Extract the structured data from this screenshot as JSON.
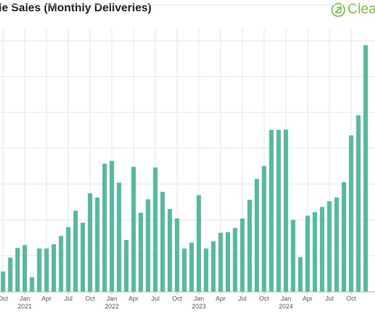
{
  "header": {
    "title": "le Sales (Monthly Deliveries)",
    "brand": "Clear"
  },
  "colors": {
    "bar": "#54b99e",
    "grid": "#e6e6e6",
    "axis": "#bbbbbb",
    "brand": "#7cc242"
  },
  "chart_data": {
    "type": "bar",
    "title": "le Sales (Monthly Deliveries)",
    "xlabel": "",
    "ylabel": "",
    "ylim": [
      0,
      100
    ],
    "grid": true,
    "legend": "none",
    "categories": [
      "2020-09",
      "2020-10",
      "2020-11",
      "2020-12",
      "2021-01",
      "2021-02",
      "2021-03",
      "2021-04",
      "2021-05",
      "2021-06",
      "2021-07",
      "2021-08",
      "2021-09",
      "2021-10",
      "2021-11",
      "2021-12",
      "2022-01",
      "2022-02",
      "2022-03",
      "2022-04",
      "2022-05",
      "2022-06",
      "2022-07",
      "2022-08",
      "2022-09",
      "2022-10",
      "2022-11",
      "2022-12",
      "2023-01",
      "2023-02",
      "2023-03",
      "2023-04",
      "2023-05",
      "2023-06",
      "2023-07",
      "2023-08",
      "2023-09",
      "2023-10",
      "2023-11",
      "2023-12",
      "2024-01",
      "2024-02",
      "2024-03",
      "2024-04",
      "2024-05",
      "2024-06",
      "2024-07",
      "2024-08",
      "2024-09",
      "2024-10",
      "2024-11",
      "2024-12"
    ],
    "values": [
      9.2,
      7.0,
      11.8,
      15.2,
      16.2,
      5.0,
      15.0,
      15.0,
      16.5,
      19.4,
      22.5,
      28.2,
      24.0,
      34.3,
      32.8,
      44.6,
      45.6,
      38.0,
      18.0,
      43.5,
      27.5,
      32.2,
      43.3,
      34.8,
      28.8,
      25.5,
      15.0,
      17.0,
      33.6,
      15.0,
      17.5,
      20.5,
      20.7,
      22.2,
      25.5,
      32.0,
      39.3,
      43.8,
      56.4,
      56.4,
      56.5,
      25.0,
      12.0,
      26.5,
      27.7,
      29.5,
      31.5,
      32.8,
      38.2,
      54.5,
      61.5,
      86.0
    ],
    "x_ticks": [
      {
        "label": "Oct",
        "index": 1
      },
      {
        "label": "Jan",
        "index": 4
      },
      {
        "label": "Apr",
        "index": 7
      },
      {
        "label": "Jul",
        "index": 10
      },
      {
        "label": "Oct",
        "index": 13
      },
      {
        "label": "Jan",
        "index": 16
      },
      {
        "label": "Apr",
        "index": 19
      },
      {
        "label": "Jul",
        "index": 22
      },
      {
        "label": "Oct",
        "index": 25
      },
      {
        "label": "Jan",
        "index": 28
      },
      {
        "label": "Apr",
        "index": 31
      },
      {
        "label": "Jul",
        "index": 34
      },
      {
        "label": "Oct",
        "index": 37
      },
      {
        "label": "Jan",
        "index": 40
      },
      {
        "label": "Apr",
        "index": 43
      },
      {
        "label": "Jul",
        "index": 46
      },
      {
        "label": "Oct",
        "index": 49
      }
    ],
    "year_labels": [
      {
        "label": "2021",
        "index": 4
      },
      {
        "label": "2022",
        "index": 16
      },
      {
        "label": "2023",
        "index": 28
      },
      {
        "label": "2024",
        "index": 40
      }
    ]
  }
}
